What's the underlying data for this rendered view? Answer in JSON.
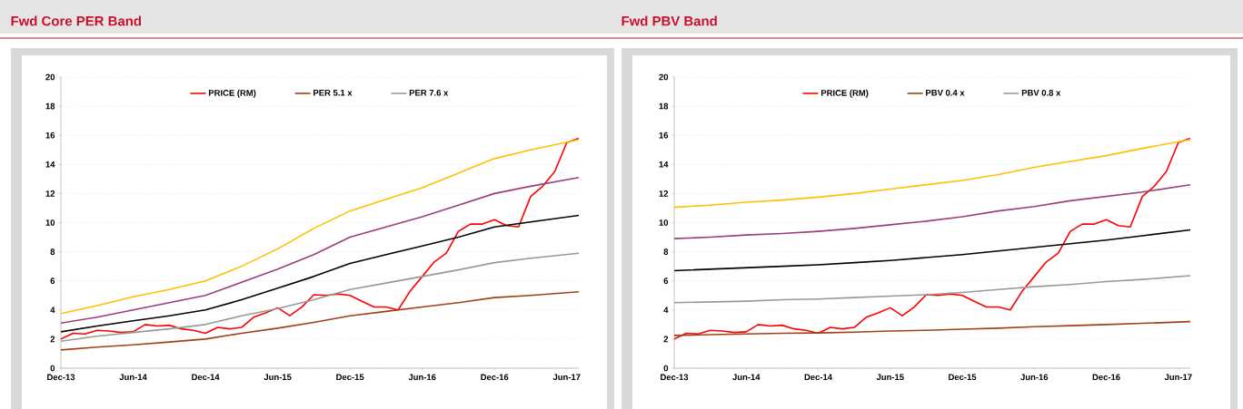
{
  "chart_data": [
    {
      "type": "line",
      "title": "Fwd Core PER Band",
      "legend": "top",
      "grid": "y",
      "marker": "none",
      "line_style": "solid",
      "xlim": [
        "2013-12",
        "2017-07"
      ],
      "ylim": [
        0,
        20
      ],
      "yticks": [
        0,
        2,
        4,
        6,
        8,
        10,
        12,
        14,
        16,
        18,
        20
      ],
      "xticks": [
        {
          "value": "2013-12",
          "label": "Dec-13"
        },
        {
          "value": "2014-06",
          "label": "Jun-14"
        },
        {
          "value": "2014-12",
          "label": "Dec-14"
        },
        {
          "value": "2015-06",
          "label": "Jun-15"
        },
        {
          "value": "2015-12",
          "label": "Dec-15"
        },
        {
          "value": "2016-06",
          "label": "Jun-16"
        },
        {
          "value": "2016-12",
          "label": "Dec-16"
        },
        {
          "value": "2017-06",
          "label": "Jun-17"
        }
      ],
      "series": [
        {
          "name": "PRICE (RM)",
          "color": "#ff0000",
          "x": [
            "2013-12",
            "2014-01",
            "2014-02",
            "2014-03",
            "2014-04",
            "2014-05",
            "2014-06",
            "2014-07",
            "2014-08",
            "2014-09",
            "2014-10",
            "2014-11",
            "2014-12",
            "2015-01",
            "2015-02",
            "2015-03",
            "2015-04",
            "2015-05",
            "2015-06",
            "2015-07",
            "2015-08",
            "2015-09",
            "2015-10",
            "2015-11",
            "2015-12",
            "2016-01",
            "2016-02",
            "2016-03",
            "2016-04",
            "2016-05",
            "2016-06",
            "2016-07",
            "2016-08",
            "2016-09",
            "2016-10",
            "2016-11",
            "2016-12",
            "2017-01",
            "2017-02",
            "2017-03",
            "2017-04",
            "2017-05",
            "2017-06",
            "2017-07"
          ],
          "values": [
            2.0,
            2.4,
            2.35,
            2.6,
            2.55,
            2.45,
            2.5,
            3.0,
            2.9,
            2.95,
            2.7,
            2.6,
            2.4,
            2.8,
            2.7,
            2.8,
            3.5,
            3.8,
            4.15,
            3.6,
            4.2,
            5.05,
            5.0,
            5.1,
            5.0,
            4.6,
            4.2,
            4.2,
            4.0,
            5.3,
            6.3,
            7.3,
            7.9,
            9.4,
            9.9,
            9.9,
            10.2,
            9.8,
            9.7,
            11.8,
            12.5,
            13.5,
            15.5,
            15.8
          ]
        },
        {
          "name": "PER 5.1 x",
          "color": "#a0401a",
          "x": [
            "2013-12",
            "2014-03",
            "2014-06",
            "2014-09",
            "2014-12",
            "2015-03",
            "2015-06",
            "2015-09",
            "2015-12",
            "2016-03",
            "2016-06",
            "2016-09",
            "2016-12",
            "2017-03",
            "2017-07"
          ],
          "values": [
            1.25,
            1.45,
            1.6,
            1.8,
            2.0,
            2.4,
            2.75,
            3.15,
            3.6,
            3.9,
            4.2,
            4.5,
            4.85,
            5.0,
            5.25
          ]
        },
        {
          "name": "PER 7.6 x",
          "color": "#999999",
          "x": [
            "2013-12",
            "2014-03",
            "2014-06",
            "2014-09",
            "2014-12",
            "2015-03",
            "2015-06",
            "2015-09",
            "2015-12",
            "2016-03",
            "2016-06",
            "2016-09",
            "2016-12",
            "2017-03",
            "2017-07"
          ],
          "values": [
            1.85,
            2.2,
            2.45,
            2.7,
            3.0,
            3.6,
            4.1,
            4.7,
            5.4,
            5.85,
            6.3,
            6.75,
            7.25,
            7.55,
            7.9
          ]
        },
        {
          "color": "#000000",
          "x": [
            "2013-12",
            "2014-03",
            "2014-06",
            "2014-09",
            "2014-12",
            "2015-03",
            "2015-06",
            "2015-09",
            "2015-12",
            "2016-03",
            "2016-06",
            "2016-09",
            "2016-12",
            "2017-03",
            "2017-07"
          ],
          "values": [
            2.5,
            2.9,
            3.25,
            3.6,
            4.0,
            4.7,
            5.5,
            6.3,
            7.2,
            7.8,
            8.4,
            9.0,
            9.7,
            10.05,
            10.5
          ]
        },
        {
          "color": "#993f7a",
          "x": [
            "2013-12",
            "2014-03",
            "2014-06",
            "2014-09",
            "2014-12",
            "2015-03",
            "2015-06",
            "2015-09",
            "2015-12",
            "2016-03",
            "2016-06",
            "2016-09",
            "2016-12",
            "2017-03",
            "2017-07"
          ],
          "values": [
            3.1,
            3.5,
            4.0,
            4.5,
            5.0,
            5.9,
            6.8,
            7.8,
            9.0,
            9.7,
            10.4,
            11.2,
            12.0,
            12.5,
            13.1
          ]
        },
        {
          "color": "#ffc000",
          "x": [
            "2013-12",
            "2014-03",
            "2014-06",
            "2014-09",
            "2014-12",
            "2015-03",
            "2015-06",
            "2015-09",
            "2015-12",
            "2016-03",
            "2016-06",
            "2016-09",
            "2016-12",
            "2017-03",
            "2017-07"
          ],
          "values": [
            3.75,
            4.3,
            4.9,
            5.4,
            6.0,
            7.0,
            8.2,
            9.6,
            10.8,
            11.6,
            12.4,
            13.4,
            14.4,
            15.0,
            15.7
          ]
        }
      ]
    },
    {
      "type": "line",
      "title": "Fwd PBV Band",
      "legend": "top",
      "grid": "y",
      "marker": "none",
      "line_style": "solid",
      "xlim": [
        "2013-12",
        "2017-07"
      ],
      "ylim": [
        0,
        20
      ],
      "yticks": [
        0,
        2,
        4,
        6,
        8,
        10,
        12,
        14,
        16,
        18,
        20
      ],
      "xticks": [
        {
          "value": "2013-12",
          "label": "Dec-13"
        },
        {
          "value": "2014-06",
          "label": "Jun-14"
        },
        {
          "value": "2014-12",
          "label": "Dec-14"
        },
        {
          "value": "2015-06",
          "label": "Jun-15"
        },
        {
          "value": "2015-12",
          "label": "Dec-15"
        },
        {
          "value": "2016-06",
          "label": "Jun-16"
        },
        {
          "value": "2016-12",
          "label": "Dec-16"
        },
        {
          "value": "2017-06",
          "label": "Jun-17"
        }
      ],
      "series": [
        {
          "name": "PRICE (RM)",
          "color": "#ff0000",
          "x": [
            "2013-12",
            "2014-01",
            "2014-02",
            "2014-03",
            "2014-04",
            "2014-05",
            "2014-06",
            "2014-07",
            "2014-08",
            "2014-09",
            "2014-10",
            "2014-11",
            "2014-12",
            "2015-01",
            "2015-02",
            "2015-03",
            "2015-04",
            "2015-05",
            "2015-06",
            "2015-07",
            "2015-08",
            "2015-09",
            "2015-10",
            "2015-11",
            "2015-12",
            "2016-01",
            "2016-02",
            "2016-03",
            "2016-04",
            "2016-05",
            "2016-06",
            "2016-07",
            "2016-08",
            "2016-09",
            "2016-10",
            "2016-11",
            "2016-12",
            "2017-01",
            "2017-02",
            "2017-03",
            "2017-04",
            "2017-05",
            "2017-06",
            "2017-07"
          ],
          "values": [
            2.0,
            2.4,
            2.35,
            2.6,
            2.55,
            2.45,
            2.5,
            3.0,
            2.9,
            2.95,
            2.7,
            2.6,
            2.4,
            2.8,
            2.7,
            2.8,
            3.5,
            3.8,
            4.15,
            3.6,
            4.2,
            5.05,
            5.0,
            5.1,
            5.0,
            4.6,
            4.2,
            4.2,
            4.0,
            5.3,
            6.3,
            7.3,
            7.9,
            9.4,
            9.9,
            9.9,
            10.2,
            9.8,
            9.7,
            11.8,
            12.5,
            13.5,
            15.5,
            15.8
          ]
        },
        {
          "name": "PBV 0.4 x",
          "color": "#a0401a",
          "x": [
            "2013-12",
            "2014-03",
            "2014-06",
            "2014-09",
            "2014-12",
            "2015-03",
            "2015-06",
            "2015-09",
            "2015-12",
            "2016-03",
            "2016-06",
            "2016-09",
            "2016-12",
            "2017-03",
            "2017-07"
          ],
          "values": [
            2.25,
            2.3,
            2.35,
            2.4,
            2.42,
            2.48,
            2.55,
            2.6,
            2.68,
            2.75,
            2.85,
            2.92,
            3.0,
            3.08,
            3.2
          ]
        },
        {
          "name": "PBV 0.8 x",
          "color": "#999999",
          "x": [
            "2013-12",
            "2014-03",
            "2014-06",
            "2014-09",
            "2014-12",
            "2015-03",
            "2015-06",
            "2015-09",
            "2015-12",
            "2016-03",
            "2016-06",
            "2016-09",
            "2016-12",
            "2017-03",
            "2017-07"
          ],
          "values": [
            4.5,
            4.55,
            4.6,
            4.7,
            4.75,
            4.85,
            4.95,
            5.05,
            5.2,
            5.4,
            5.6,
            5.75,
            5.95,
            6.1,
            6.35
          ]
        },
        {
          "color": "#000000",
          "x": [
            "2013-12",
            "2014-03",
            "2014-06",
            "2014-09",
            "2014-12",
            "2015-03",
            "2015-06",
            "2015-09",
            "2015-12",
            "2016-03",
            "2016-06",
            "2016-09",
            "2016-12",
            "2017-03",
            "2017-07"
          ],
          "values": [
            6.7,
            6.8,
            6.9,
            7.0,
            7.1,
            7.25,
            7.4,
            7.6,
            7.8,
            8.05,
            8.3,
            8.55,
            8.8,
            9.1,
            9.5
          ]
        },
        {
          "color": "#993f7a",
          "x": [
            "2013-12",
            "2014-03",
            "2014-06",
            "2014-09",
            "2014-12",
            "2015-03",
            "2015-06",
            "2015-09",
            "2015-12",
            "2016-03",
            "2016-06",
            "2016-09",
            "2016-12",
            "2017-03",
            "2017-07"
          ],
          "values": [
            8.9,
            9.0,
            9.15,
            9.25,
            9.4,
            9.6,
            9.85,
            10.1,
            10.4,
            10.8,
            11.1,
            11.5,
            11.8,
            12.1,
            12.6
          ]
        },
        {
          "color": "#ffc000",
          "x": [
            "2013-12",
            "2014-03",
            "2014-06",
            "2014-09",
            "2014-12",
            "2015-03",
            "2015-06",
            "2015-09",
            "2015-12",
            "2016-03",
            "2016-06",
            "2016-09",
            "2016-12",
            "2017-03",
            "2017-07"
          ],
          "values": [
            11.05,
            11.2,
            11.4,
            11.55,
            11.75,
            12.0,
            12.3,
            12.6,
            12.9,
            13.3,
            13.8,
            14.2,
            14.6,
            15.1,
            15.7
          ]
        }
      ]
    }
  ]
}
